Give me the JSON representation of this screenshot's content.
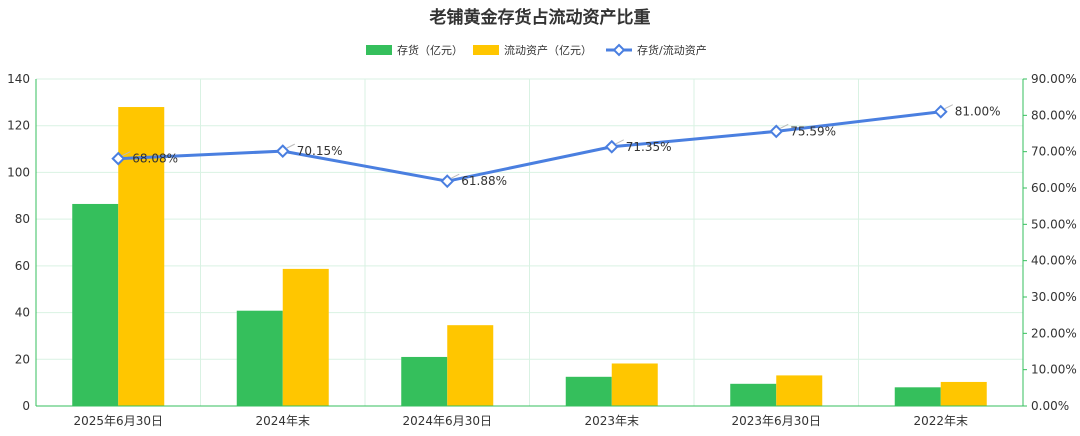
{
  "chart_data": {
    "type": "bar",
    "title": "老铺黄金存货占流动资产比重",
    "categories": [
      "2025年6月30日",
      "2024年末",
      "2024年6月30日",
      "2023年末",
      "2023年6月30日",
      "2022年末"
    ],
    "series": [
      {
        "name": "存货（亿元）",
        "type": "bar",
        "axis": "left",
        "color": "#35bf5c",
        "values": [
          86.5,
          40.8,
          21.0,
          12.5,
          9.5,
          8.0
        ]
      },
      {
        "name": "流动资产（亿元）",
        "type": "bar",
        "axis": "left",
        "color": "#ffc600",
        "values": [
          128.0,
          58.7,
          34.6,
          18.2,
          13.1,
          10.3
        ]
      },
      {
        "name": "存货/流动资产",
        "type": "line",
        "axis": "right",
        "color": "#4a7fe0",
        "values": [
          68.08,
          70.15,
          61.88,
          71.35,
          75.59,
          81.0
        ],
        "labels": [
          "68.08%",
          "70.15%",
          "61.88%",
          "71.35%",
          "75.59%",
          "81.00%"
        ]
      }
    ],
    "y_left": {
      "min": 0,
      "max": 140,
      "ticks": [
        "0",
        "20",
        "40",
        "60",
        "80",
        "100",
        "120",
        "140"
      ]
    },
    "y_right": {
      "min": 0,
      "max": 90,
      "ticks": [
        "0.00%",
        "10.00%",
        "20.00%",
        "30.00%",
        "40.00%",
        "50.00%",
        "60.00%",
        "70.00%",
        "80.00%",
        "90.00%"
      ]
    },
    "grid": true,
    "legend_position": "top-center"
  }
}
